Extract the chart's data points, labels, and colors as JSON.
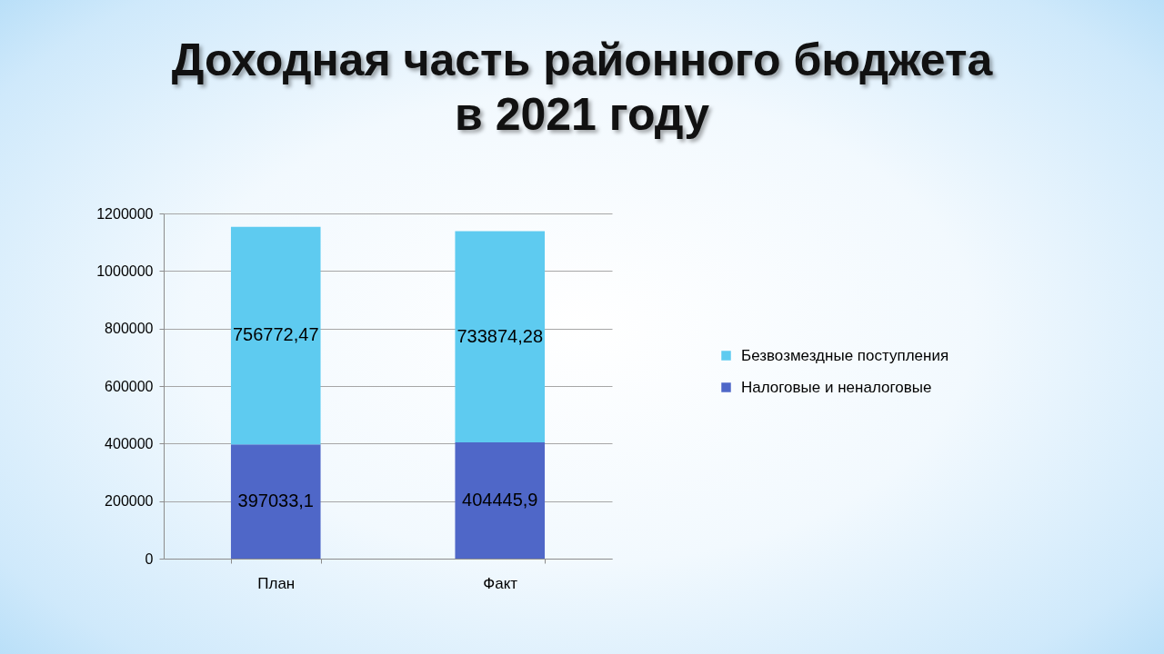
{
  "chart_data": {
    "type": "bar",
    "title": "Доходная часть районного бюджета в 2021 году",
    "categories": [
      "План",
      "Факт"
    ],
    "series": [
      {
        "name": "Налоговые и неналоговые",
        "color": "#4f67c8",
        "values": [
          397033.1,
          404445.9
        ],
        "value_labels": [
          "397033,1",
          "404445,9"
        ]
      },
      {
        "name": "Безвозмездные поступления",
        "color": "#5ecbf0",
        "values": [
          756772.47,
          733874.28
        ],
        "value_labels": [
          "756772,47",
          "733874,28"
        ]
      }
    ],
    "stacked": true,
    "ylim": [
      0,
      1200000
    ],
    "yticks": [
      0,
      200000,
      400000,
      600000,
      800000,
      1000000,
      1200000
    ],
    "grid": "y",
    "legend": "right"
  }
}
